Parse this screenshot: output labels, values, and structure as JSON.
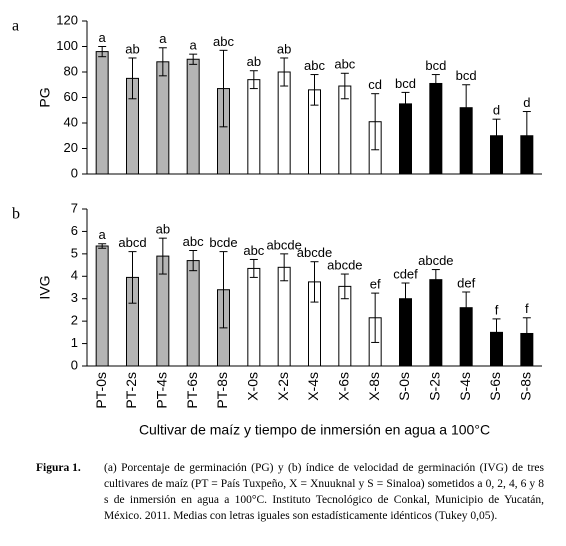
{
  "chart_data": [
    {
      "type": "bar",
      "panel": "a",
      "ylabel": "PG",
      "ylim": [
        0,
        120
      ],
      "yticks": [
        0,
        20,
        40,
        60,
        80,
        100,
        120
      ],
      "values": [
        96,
        75,
        88,
        90,
        67,
        74,
        80,
        66,
        69,
        41,
        55,
        71,
        52,
        30,
        30
      ],
      "errors": [
        4,
        16,
        11,
        4,
        30,
        7,
        11,
        12,
        10,
        22,
        9,
        7,
        18,
        13,
        19
      ],
      "letters": [
        "a",
        "ab",
        "a",
        "a",
        "abc",
        "ab",
        "ab",
        "abc",
        "abc",
        "cd",
        "bcd",
        "bcd",
        "bcd",
        "d",
        "d"
      ],
      "colors": [
        "#b4b4b4",
        "#b4b4b4",
        "#b4b4b4",
        "#b4b4b4",
        "#b4b4b4",
        "#ffffff",
        "#ffffff",
        "#ffffff",
        "#ffffff",
        "#ffffff",
        "#000000",
        "#000000",
        "#000000",
        "#000000",
        "#000000"
      ]
    },
    {
      "type": "bar",
      "panel": "b",
      "ylabel": "IVG",
      "xlabel": "Cultivar de maíz y tiempo de inmersión en agua a 100°C",
      "ylim": [
        0,
        7
      ],
      "yticks": [
        0,
        1,
        2,
        3,
        4,
        5,
        6,
        7
      ],
      "categories": [
        "PT-0s",
        "PT-2s",
        "PT-4s",
        "PT-6s",
        "PT-8s",
        "X-0s",
        "X-2s",
        "X-4s",
        "X-6s",
        "X-8s",
        "S-0s",
        "S-2s",
        "S-4s",
        "S-6s",
        "S-8s"
      ],
      "values": [
        5.35,
        3.95,
        4.9,
        4.7,
        3.4,
        4.35,
        4.4,
        3.75,
        3.55,
        2.15,
        3.0,
        3.85,
        2.6,
        1.5,
        1.45
      ],
      "errors": [
        0.1,
        1.15,
        0.8,
        0.45,
        1.7,
        0.4,
        0.6,
        0.9,
        0.55,
        1.1,
        0.7,
        0.45,
        0.7,
        0.6,
        0.7
      ],
      "letters": [
        "a",
        "abcd",
        "ab",
        "abc",
        "bcde",
        "abc",
        "abcde",
        "abcde",
        "abcde",
        "ef",
        "cdef",
        "abcde",
        "def",
        "f",
        "f"
      ],
      "colors": [
        "#b4b4b4",
        "#b4b4b4",
        "#b4b4b4",
        "#b4b4b4",
        "#b4b4b4",
        "#ffffff",
        "#ffffff",
        "#ffffff",
        "#ffffff",
        "#ffffff",
        "#000000",
        "#000000",
        "#000000",
        "#000000",
        "#000000"
      ]
    }
  ],
  "caption": {
    "label": "Figura 1.",
    "text": "(a) Porcentaje de germinación (PG) y (b) índice de velocidad de germinación (IVG) de tres cultivares de maíz (PT = País Tuxpeño, X = Xnuuknal y S = Sinaloa) sometidos a 0, 2, 4, 6 y 8 s de inmersión en agua a 100°C.  Instituto Tecnológico de Conkal, Municipio de Yucatán, México. 2011. Medias con letras iguales son estadísticamente idénticos (Tukey 0,05)."
  }
}
